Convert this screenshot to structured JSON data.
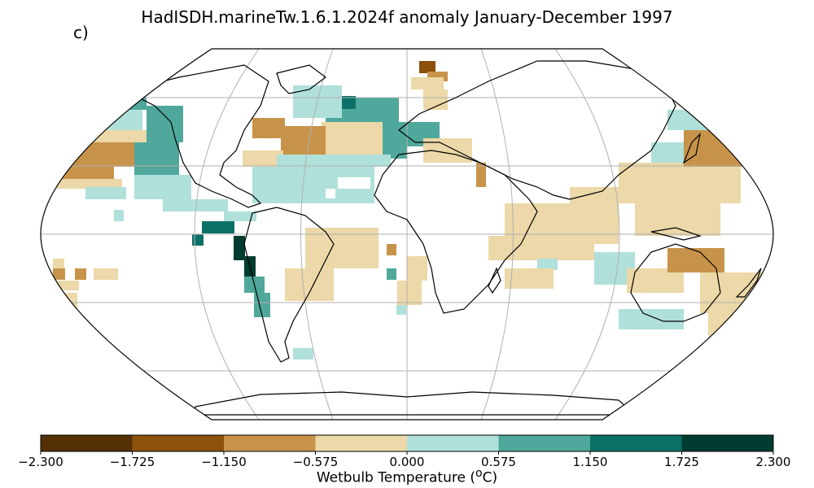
{
  "title": "HadISDH.marineTw.1.6.1.2024f anomaly January-December 1997",
  "panel_label": "c)",
  "colorbar": {
    "label_prefix": "Wetbulb Temperature (",
    "label_sup": "o",
    "label_suffix": "C)",
    "ticks": [
      "−2.300",
      "−1.725",
      "−1.150",
      "−0.575",
      "0.000",
      "0.575",
      "1.150",
      "1.725",
      "2.300"
    ],
    "colors": [
      "#543005",
      "#8c510a",
      "#c7934a",
      "#ecd8a8",
      "#b0e0da",
      "#4fa89b",
      "#0d7066",
      "#003c30"
    ]
  },
  "chart_data": {
    "type": "heatmap",
    "projection": "Robinson",
    "variable": "Wetbulb Temperature anomaly (°C)",
    "vmin": -2.3,
    "vmax": 2.3,
    "levels": [
      -2.3,
      -1.725,
      -1.15,
      -0.575,
      0.0,
      0.575,
      1.15,
      1.725,
      2.3
    ],
    "grid": true
  }
}
